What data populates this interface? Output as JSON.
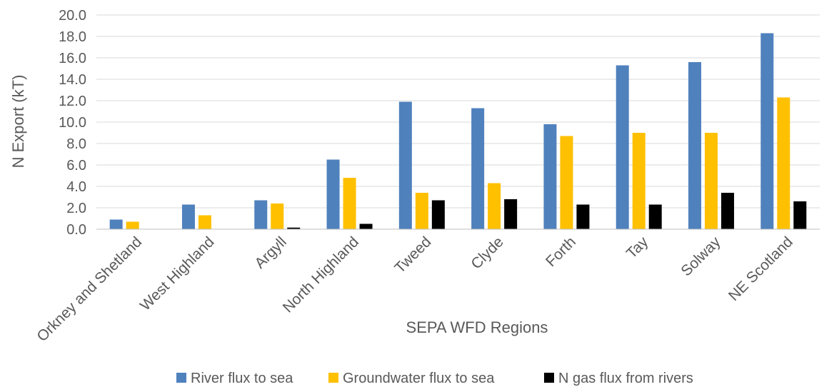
{
  "chart_data": {
    "type": "bar",
    "title": "",
    "xlabel": "SEPA WFD Regions",
    "ylabel": "N Export (kT)",
    "ylim": [
      0,
      20
    ],
    "ytick_step": 2,
    "grid": true,
    "legend_placement": "bottom",
    "categories": [
      "Orkney and Shetland",
      "West Highland",
      "Argyll",
      "North Highland",
      "Tweed",
      "Clyde",
      "Forth",
      "Tay",
      "Solway",
      "NE Scotland"
    ],
    "yticks": [
      "0.0",
      "2.0",
      "4.0",
      "6.0",
      "8.0",
      "10.0",
      "12.0",
      "14.0",
      "16.0",
      "18.0",
      "20.0"
    ],
    "series": [
      {
        "name": "River flux to sea",
        "color": "#4f81bd",
        "values": [
          0.9,
          2.3,
          2.7,
          6.5,
          11.9,
          11.3,
          9.8,
          15.3,
          15.6,
          18.3
        ]
      },
      {
        "name": "Groundwater flux to sea",
        "color": "#ffc000",
        "values": [
          0.7,
          1.3,
          2.4,
          4.8,
          3.4,
          4.3,
          8.7,
          9.0,
          9.0,
          12.3
        ]
      },
      {
        "name": "N gas flux from rivers",
        "color": "#000000",
        "values": [
          0.0,
          0.0,
          0.15,
          0.5,
          2.7,
          2.8,
          2.3,
          2.3,
          3.4,
          2.6
        ]
      }
    ]
  }
}
